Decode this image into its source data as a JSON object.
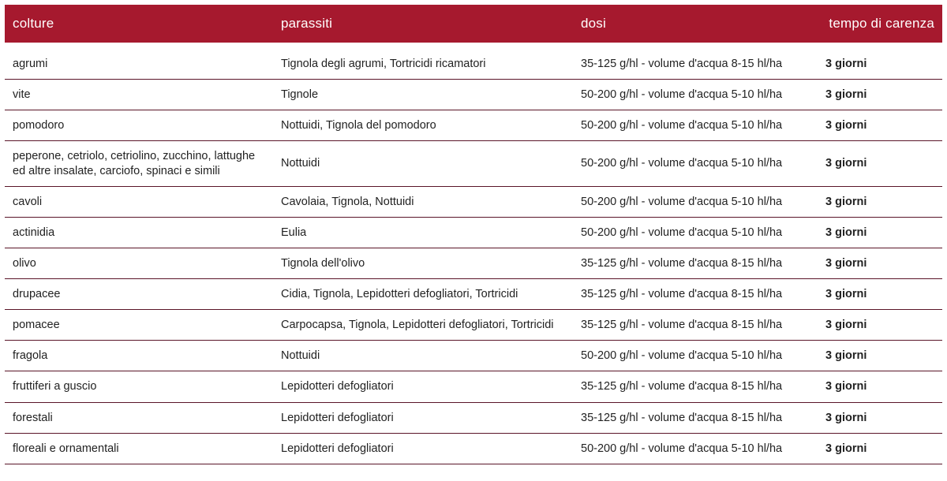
{
  "table": {
    "header_bg": "#a6192e",
    "header_fg": "#ffffff",
    "border_color": "#5a1528",
    "text_color": "#222222",
    "columns": [
      {
        "label": "colture",
        "align": "left"
      },
      {
        "label": "parassiti",
        "align": "left"
      },
      {
        "label": "dosi",
        "align": "left"
      },
      {
        "label": "tempo di carenza",
        "align": "right"
      }
    ],
    "rows": [
      {
        "colture": "agrumi",
        "parassiti": "Tignola degli agrumi, Tortricidi ricamatori",
        "dosi": "35-125 g/hl - volume d'acqua 8-15 hl/ha",
        "tempo": "3 giorni"
      },
      {
        "colture": "vite",
        "parassiti": "Tignole",
        "dosi": "50-200 g/hl - volume d'acqua 5-10 hl/ha",
        "tempo": "3 giorni"
      },
      {
        "colture": "pomodoro",
        "parassiti": "Nottuidi, Tignola del pomodoro",
        "dosi": "50-200 g/hl - volume d'acqua 5-10 hl/ha",
        "tempo": "3 giorni"
      },
      {
        "colture": "peperone, cetriolo, cetriolino, zucchino, lattughe ed altre insalate, carciofo, spinaci e simili",
        "parassiti": "Nottuidi",
        "dosi": "50-200 g/hl - volume d'acqua 5-10 hl/ha",
        "tempo": "3 giorni"
      },
      {
        "colture": "cavoli",
        "parassiti": "Cavolaia, Tignola, Nottuidi",
        "dosi": "50-200 g/hl - volume d'acqua 5-10 hl/ha",
        "tempo": "3 giorni"
      },
      {
        "colture": "actinidia",
        "parassiti": "Eulia",
        "dosi": "50-200 g/hl - volume d'acqua 5-10 hl/ha",
        "tempo": "3 giorni"
      },
      {
        "colture": "olivo",
        "parassiti": "Tignola dell'olivo",
        "dosi": "35-125 g/hl - volume d'acqua 8-15 hl/ha",
        "tempo": "3 giorni"
      },
      {
        "colture": "drupacee",
        "parassiti": "Cidia, Tignola, Lepidotteri defogliatori, Tortricidi",
        "dosi": "35-125 g/hl - volume d'acqua 8-15 hl/ha",
        "tempo": "3 giorni"
      },
      {
        "colture": "pomacee",
        "parassiti": "Carpocapsa, Tignola, Lepidotteri defogliatori, Tortricidi",
        "dosi": "35-125 g/hl - volume d'acqua 8-15 hl/ha",
        "tempo": "3 giorni"
      },
      {
        "colture": "fragola",
        "parassiti": " Nottuidi",
        "dosi": "50-200 g/hl - volume d'acqua 5-10 hl/ha",
        "tempo": "3 giorni"
      },
      {
        "colture": "fruttiferi a guscio",
        "parassiti": "Lepidotteri defogliatori",
        "dosi": "35-125 g/hl - volume d'acqua 8-15 hl/ha",
        "tempo": "3 giorni"
      },
      {
        "colture": "forestali",
        "parassiti": "Lepidotteri defogliatori",
        "dosi": "35-125 g/hl - volume d'acqua 8-15 hl/ha",
        "tempo": "3 giorni"
      },
      {
        "colture": "floreali e ornamentali",
        "parassiti": "Lepidotteri defogliatori",
        "dosi": "50-200 g/hl - volume d'acqua 5-10 hl/ha",
        "tempo": "3 giorni"
      }
    ]
  }
}
